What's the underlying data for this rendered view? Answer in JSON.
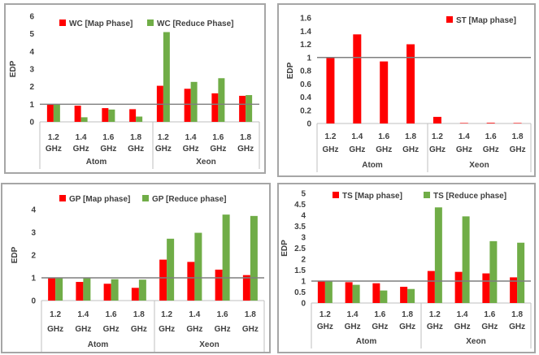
{
  "colors": {
    "map": "#ff0000",
    "reduce": "#70ad47",
    "baseline": "#7f7f7f",
    "axis": "#bfbfbf"
  },
  "chart_data": [
    {
      "type": "bar",
      "ylabel": "EDP",
      "ylim": [
        0,
        6
      ],
      "yticks": [
        "0",
        "1",
        "2",
        "3",
        "4",
        "5",
        "6"
      ],
      "categories": [
        "1.2 GHz",
        "1.4 GHz",
        "1.6 GHz",
        "1.8 GHz",
        "1.2 GHz",
        "1.4 GHz",
        "1.6 GHz",
        "1.8 GHz"
      ],
      "groups": [
        "Atom",
        "Xeon"
      ],
      "baseline": 1,
      "legend_position": "top-center",
      "series": [
        {
          "name": "WC [Map Phase]",
          "color": "#ff0000",
          "values": [
            1.0,
            0.92,
            0.78,
            0.72,
            2.05,
            1.88,
            1.62,
            1.48
          ]
        },
        {
          "name": "WC [Reduce Phase]",
          "color": "#70ad47",
          "values": [
            1.0,
            0.26,
            0.7,
            0.3,
            5.1,
            2.27,
            2.48,
            1.52
          ]
        }
      ]
    },
    {
      "type": "bar",
      "ylabel": "EDP",
      "ylim": [
        0,
        1.6
      ],
      "yticks": [
        "0",
        "0.2",
        "0.4",
        "0.6",
        "0.8",
        "1",
        "1.2",
        "1.4",
        "1.6"
      ],
      "categories": [
        "1.2 GHz",
        "1.4 GHz",
        "1.6 GHz",
        "1.8 GHz",
        "1.2 GHz",
        "1.4 GHz",
        "1.6 GHz",
        "1.8 GHz"
      ],
      "groups": [
        "Atom",
        "Xeon"
      ],
      "baseline": 1,
      "legend_position": "top-right",
      "series": [
        {
          "name": "ST [Map phase]",
          "color": "#ff0000",
          "values": [
            1.0,
            1.35,
            0.94,
            1.2,
            0.1,
            0.005,
            0.01,
            0.005
          ]
        }
      ]
    },
    {
      "type": "bar",
      "ylabel": "EDP",
      "ylim": [
        0,
        4
      ],
      "yticks": [
        "0",
        "1",
        "2",
        "3",
        "4"
      ],
      "categories": [
        "1.2 GHz",
        "1.4 GHz",
        "1.6 GHz",
        "1.8 GHz",
        "1.2 GHz",
        "1.4 GHz",
        "1.6 GHz",
        "1.8 GHz"
      ],
      "groups": [
        "Atom",
        "Xeon"
      ],
      "baseline": 1,
      "legend_position": "top-left",
      "series": [
        {
          "name": "GP [Map phase]",
          "color": "#ff0000",
          "values": [
            1.0,
            0.82,
            0.74,
            0.56,
            1.8,
            1.7,
            1.36,
            1.12
          ]
        },
        {
          "name": "GP [Reduce phase]",
          "color": "#70ad47",
          "values": [
            1.0,
            1.0,
            0.94,
            0.92,
            2.72,
            2.98,
            3.78,
            3.72
          ]
        }
      ]
    },
    {
      "type": "bar",
      "ylabel": "EDP",
      "ylim": [
        0,
        5
      ],
      "yticks": [
        "0",
        "0.5",
        "1",
        "1.5",
        "2",
        "2.5",
        "3",
        "3.5",
        "4",
        "4.5",
        "5"
      ],
      "categories": [
        "1.2 GHz",
        "1.4 GHz",
        "1.6 GHz",
        "1.8 GHz",
        "1.2 GHz",
        "1.4 GHz",
        "1.6 GHz",
        "1.8 GHz"
      ],
      "groups": [
        "Atom",
        "Xeon"
      ],
      "baseline": 1,
      "legend_position": "top-center",
      "series": [
        {
          "name": "TS [Map phase]",
          "color": "#ff0000",
          "values": [
            1.0,
            0.95,
            0.9,
            0.74,
            1.46,
            1.42,
            1.35,
            1.17
          ]
        },
        {
          "name": "TS [Reduce phase]",
          "color": "#70ad47",
          "values": [
            1.0,
            0.83,
            0.57,
            0.64,
            4.36,
            3.95,
            2.82,
            2.75
          ]
        }
      ]
    }
  ]
}
